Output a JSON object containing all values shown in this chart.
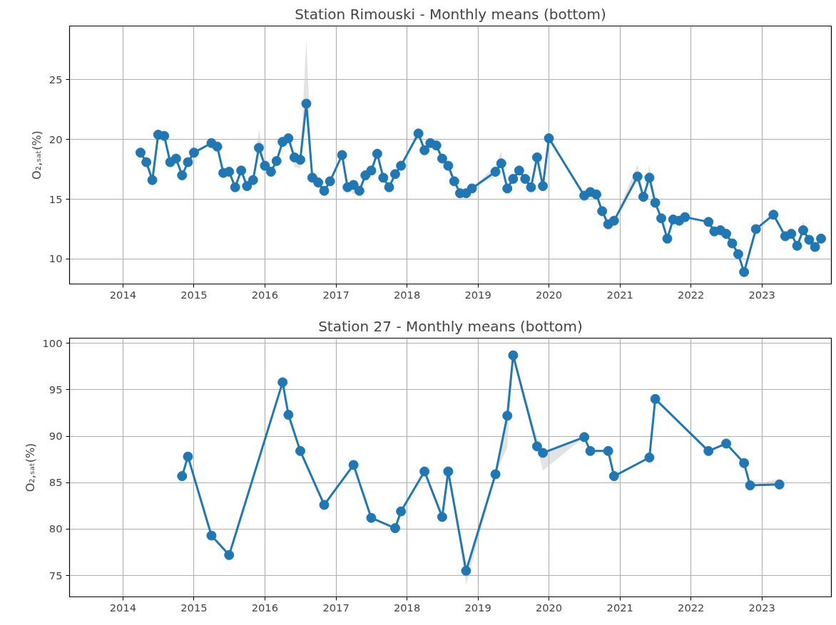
{
  "chart_data": [
    {
      "type": "line",
      "title": "Station Rimouski - Monthly means (bottom)",
      "ylabel": "O₂,ₛₐₜ(%)",
      "xlim": [
        "2013-04-01",
        "2023-12-24"
      ],
      "xticks": [
        "2014",
        "2015",
        "2016",
        "2017",
        "2018",
        "2019",
        "2020",
        "2021",
        "2022",
        "2023"
      ],
      "ylim": [
        7.9,
        29.5
      ],
      "yticks": [
        10,
        15,
        20,
        25
      ],
      "grid": true,
      "marker": "circle",
      "line_style": "solid",
      "series": [
        {
          "color": "#1f77b4",
          "x": [
            "2014-04",
            "2014-05",
            "2014-06",
            "2014-07",
            "2014-08",
            "2014-09",
            "2014-10",
            "2014-11",
            "2014-12",
            "2015-01",
            "2015-04",
            "2015-05",
            "2015-06",
            "2015-07",
            "2015-08",
            "2015-09",
            "2015-10",
            "2015-11",
            "2015-12",
            "2016-01",
            "2016-02",
            "2016-03",
            "2016-04",
            "2016-05",
            "2016-06",
            "2016-07",
            "2016-08",
            "2016-09",
            "2016-10",
            "2016-11",
            "2016-12",
            "2017-02",
            "2017-03",
            "2017-04",
            "2017-05",
            "2017-06",
            "2017-07",
            "2017-08",
            "2017-09",
            "2017-10",
            "2017-11",
            "2017-12",
            "2018-03",
            "2018-04",
            "2018-05",
            "2018-06",
            "2018-07",
            "2018-08",
            "2018-09",
            "2018-10",
            "2018-11",
            "2018-12",
            "2019-04",
            "2019-05",
            "2019-06",
            "2019-07",
            "2019-08",
            "2019-09",
            "2019-10",
            "2019-11",
            "2019-12",
            "2020-01",
            "2020-07",
            "2020-08",
            "2020-09",
            "2020-10",
            "2020-11",
            "2020-12",
            "2021-04",
            "2021-05",
            "2021-06",
            "2021-07",
            "2021-08",
            "2021-09",
            "2021-10",
            "2021-11",
            "2021-12",
            "2022-04",
            "2022-05",
            "2022-06",
            "2022-07",
            "2022-08",
            "2022-09",
            "2022-10",
            "2022-12",
            "2023-03",
            "2023-05",
            "2023-06",
            "2023-07",
            "2023-08",
            "2023-09",
            "2023-10",
            "2023-11"
          ],
          "values": [
            18.9,
            18.1,
            16.6,
            20.4,
            20.3,
            18.1,
            18.4,
            17.0,
            18.1,
            18.9,
            19.7,
            19.4,
            17.2,
            17.3,
            16.0,
            17.4,
            16.1,
            16.6,
            19.3,
            17.8,
            17.3,
            18.2,
            19.8,
            20.1,
            18.5,
            18.3,
            23.0,
            16.8,
            16.4,
            15.7,
            16.5,
            18.7,
            16.0,
            16.2,
            15.7,
            17.0,
            17.4,
            18.8,
            16.8,
            16.0,
            17.1,
            17.8,
            20.5,
            19.1,
            19.7,
            19.5,
            18.4,
            17.8,
            16.5,
            15.5,
            15.5,
            15.9,
            17.3,
            18.0,
            15.9,
            16.7,
            17.4,
            16.7,
            16.0,
            18.5,
            16.1,
            20.1,
            15.3,
            15.6,
            15.4,
            14.0,
            12.9,
            13.2,
            16.9,
            15.2,
            16.8,
            14.7,
            13.4,
            11.7,
            13.3,
            13.2,
            13.5,
            13.1,
            12.3,
            12.4,
            12.1,
            11.3,
            10.4,
            8.9,
            12.5,
            13.7,
            11.9,
            12.1,
            11.1,
            12.4,
            11.6,
            11.0,
            11.7
          ],
          "lower": [
            18.9,
            18.1,
            16.6,
            20.4,
            20.3,
            18.1,
            18.4,
            17.0,
            18.1,
            18.9,
            19.7,
            19.4,
            17.2,
            17.3,
            16.0,
            17.4,
            16.1,
            16.6,
            19.3,
            17.8,
            17.3,
            18.2,
            19.8,
            20.1,
            17.7,
            17.6,
            22.0,
            16.8,
            16.4,
            15.7,
            16.5,
            18.7,
            16.0,
            15.4,
            15.7,
            17.0,
            17.4,
            18.8,
            16.8,
            16.0,
            17.1,
            17.8,
            20.5,
            19.1,
            19.7,
            19.5,
            18.4,
            17.8,
            16.5,
            15.5,
            15.5,
            15.9,
            16.9,
            18.0,
            15.9,
            16.7,
            17.4,
            16.7,
            16.0,
            18.5,
            16.1,
            20.1,
            15.3,
            15.6,
            15.4,
            14.0,
            12.9,
            13.2,
            16.9,
            15.2,
            16.8,
            14.7,
            13.4,
            11.7,
            13.3,
            13.2,
            13.5,
            13.1,
            12.3,
            12.4,
            12.1,
            11.3,
            10.4,
            8.9,
            12.5,
            13.7,
            11.9,
            12.1,
            11.1,
            12.4,
            11.6,
            11.0,
            11.7
          ],
          "upper": [
            18.9,
            18.1,
            16.6,
            20.4,
            20.3,
            18.1,
            18.4,
            17.0,
            18.1,
            18.9,
            19.7,
            19.4,
            17.2,
            17.3,
            16.0,
            17.4,
            16.1,
            16.6,
            20.9,
            17.8,
            17.3,
            18.2,
            19.8,
            20.1,
            18.5,
            18.3,
            28.4,
            16.8,
            16.4,
            15.7,
            16.5,
            18.7,
            16.0,
            16.2,
            15.7,
            17.0,
            17.4,
            19.4,
            16.8,
            16.0,
            17.1,
            17.8,
            20.5,
            19.1,
            19.7,
            19.5,
            18.4,
            17.8,
            16.5,
            15.5,
            15.5,
            15.9,
            17.8,
            19.0,
            15.9,
            16.7,
            17.4,
            16.7,
            16.0,
            18.5,
            16.1,
            20.1,
            15.3,
            15.6,
            15.4,
            14.0,
            12.9,
            13.2,
            17.9,
            15.2,
            17.9,
            14.7,
            13.4,
            11.7,
            13.3,
            13.2,
            13.5,
            13.1,
            12.3,
            12.4,
            12.1,
            11.3,
            10.4,
            8.9,
            12.5,
            13.7,
            11.9,
            12.1,
            11.1,
            13.2,
            11.6,
            11.0,
            11.7
          ]
        }
      ]
    },
    {
      "type": "line",
      "title": "Station 27 - Monthly means (bottom)",
      "ylabel": "O₂,ₛₐₜ(%)",
      "xlim": [
        "2013-04-01",
        "2023-12-24"
      ],
      "xticks": [
        "2014",
        "2015",
        "2016",
        "2017",
        "2018",
        "2019",
        "2020",
        "2021",
        "2022",
        "2023"
      ],
      "ylim": [
        72.7,
        100.55
      ],
      "yticks": [
        75,
        80,
        85,
        90,
        95,
        100
      ],
      "grid": true,
      "marker": "circle",
      "line_style": "solid",
      "series": [
        {
          "color": "#1f77b4",
          "x": [
            "2014-11",
            "2014-12",
            "2015-04",
            "2015-07",
            "2016-04",
            "2016-05",
            "2016-07",
            "2016-11",
            "2017-04",
            "2017-07",
            "2017-11",
            "2017-12",
            "2018-04",
            "2018-07",
            "2018-08",
            "2018-11",
            "2019-04",
            "2019-06",
            "2019-07",
            "2019-11",
            "2019-12",
            "2020-07",
            "2020-08",
            "2020-11",
            "2020-12",
            "2021-06",
            "2021-07",
            "2022-04",
            "2022-07",
            "2022-10",
            "2022-11",
            "2023-04"
          ],
          "values": [
            85.7,
            87.8,
            79.3,
            77.2,
            95.8,
            92.3,
            88.4,
            82.6,
            86.9,
            81.2,
            80.1,
            81.9,
            86.2,
            81.3,
            86.2,
            75.5,
            85.9,
            92.2,
            98.7,
            88.9,
            88.2,
            89.9,
            88.4,
            88.4,
            85.7,
            87.7,
            94.0,
            88.4,
            89.2,
            87.1,
            84.7,
            84.8
          ],
          "lower": [
            85.7,
            87.8,
            79.3,
            77.2,
            95.8,
            92.3,
            88.4,
            82.6,
            86.9,
            81.2,
            80.1,
            81.9,
            86.2,
            81.3,
            86.2,
            74.0,
            85.9,
            88.8,
            98.7,
            88.9,
            86.3,
            89.9,
            88.4,
            88.4,
            85.7,
            87.7,
            94.0,
            88.4,
            89.2,
            87.1,
            84.7,
            84.8
          ],
          "upper": [
            85.7,
            87.8,
            79.3,
            77.2,
            95.8,
            92.3,
            88.4,
            82.6,
            86.9,
            81.2,
            80.1,
            81.9,
            86.2,
            81.3,
            86.2,
            75.5,
            85.9,
            92.2,
            98.7,
            89.9,
            88.2,
            89.9,
            88.4,
            88.4,
            85.7,
            87.7,
            94.0,
            88.4,
            89.2,
            87.1,
            84.7,
            85.4
          ]
        }
      ]
    }
  ]
}
